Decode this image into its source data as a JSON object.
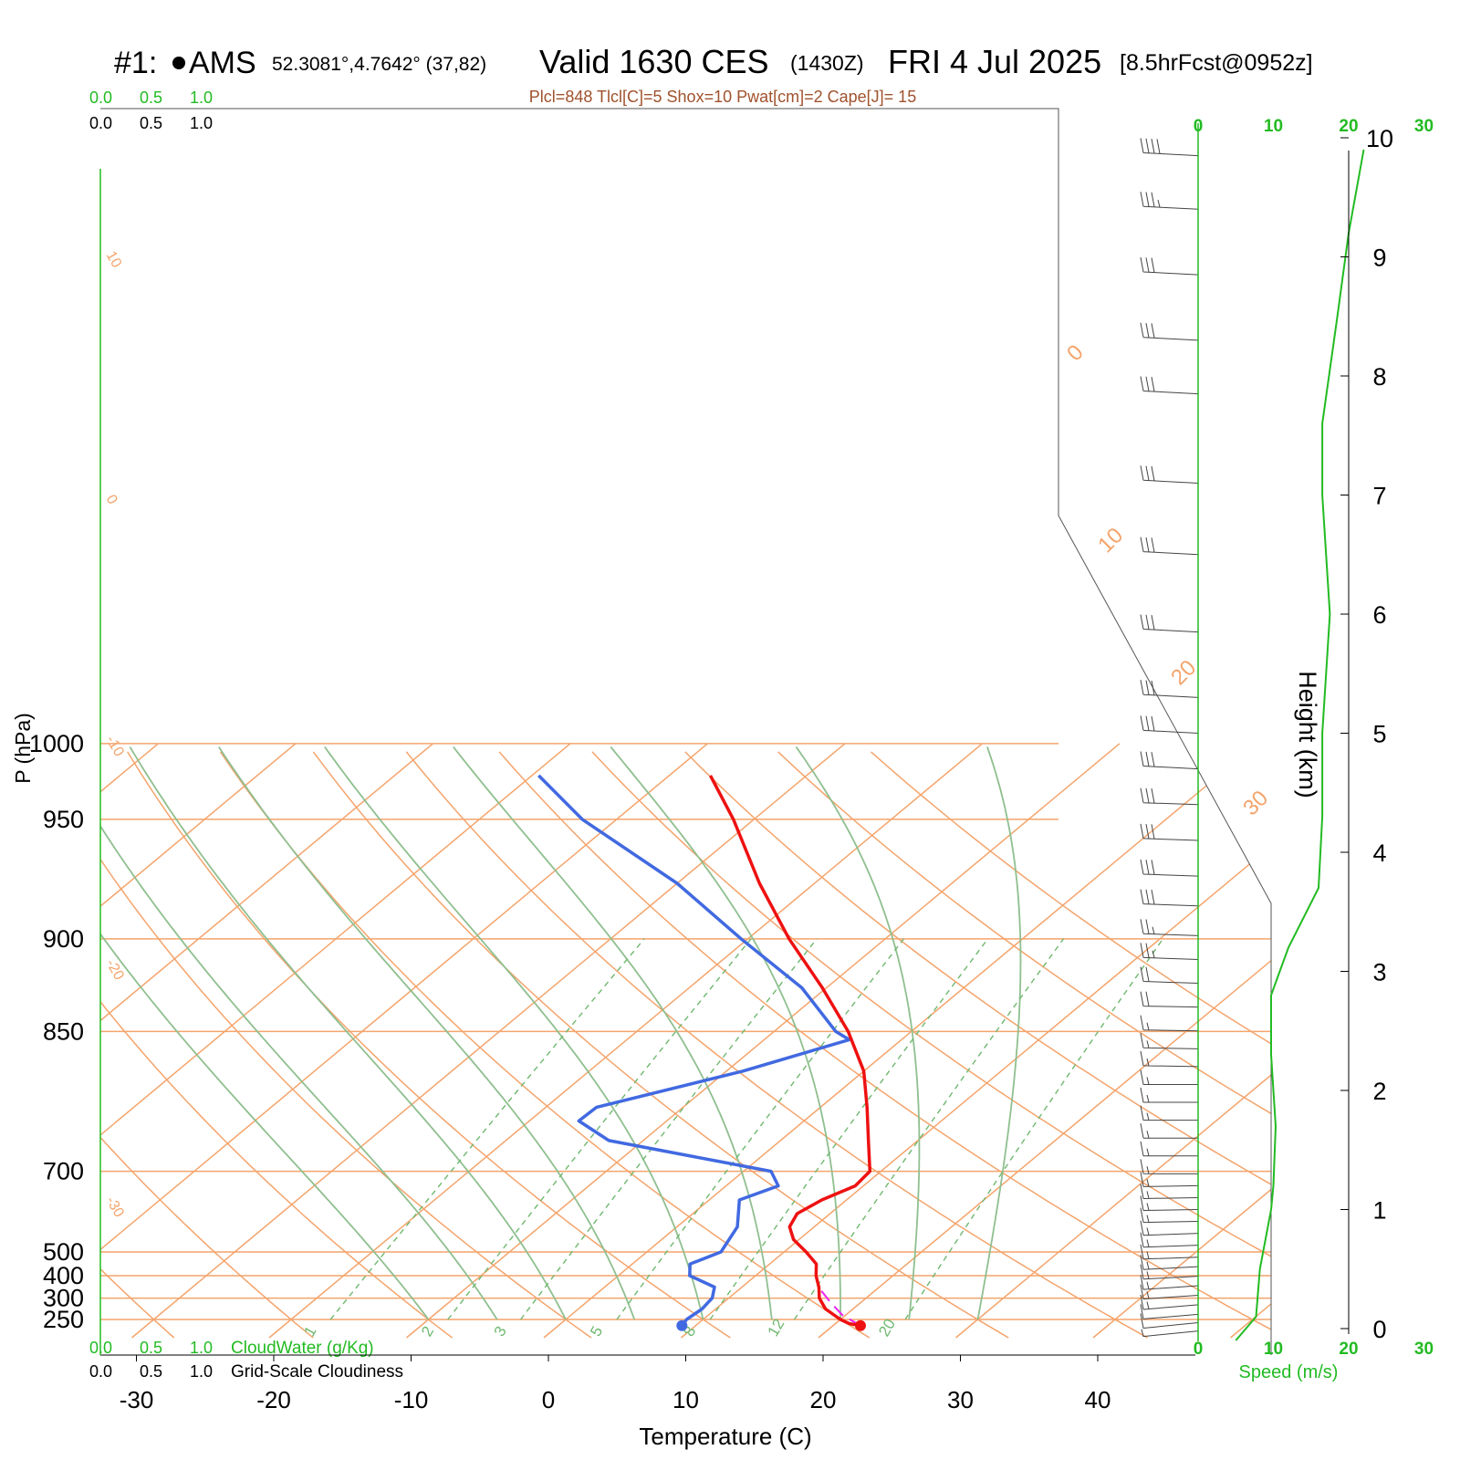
{
  "header": {
    "station_prefix": "#1: ",
    "station": "AMS",
    "coords": "52.3081°,4.7642° (37,82)",
    "valid_label": "Valid 1630 CES",
    "zulu": "(1430Z)",
    "date": "FRI 4 Jul 2025",
    "forecast": "[8.5hrFcst@0952z]",
    "params": "Plcl=848 Tlcl[C]=5 Shox=10 Pwat[cm]=2 Cape[J]= 15"
  },
  "axes": {
    "xlabel": "Temperature (C)",
    "ylabel": "P (hPa)",
    "height_label": "Height (km)",
    "speed_label": "Speed (m/s)",
    "cloudwater_label": "CloudWater (g/Kg)",
    "cloudiness_label": "Grid-Scale Cloudiness",
    "cloud_scale_ticks": [
      "0.0",
      "0.5",
      "1.0"
    ],
    "pressure_ticks": [
      "250",
      "300",
      "400",
      "500",
      "700",
      "850",
      "900",
      "950",
      "1000"
    ],
    "temp_ticks": [
      "-30",
      "-20",
      "-10",
      "0",
      "10",
      "20",
      "30",
      "40"
    ],
    "height_ticks": [
      "0",
      "1",
      "2",
      "3",
      "4",
      "5",
      "6",
      "7",
      "8",
      "9",
      "10"
    ],
    "speed_ticks": [
      "0",
      "10",
      "20",
      "30"
    ]
  },
  "colors": {
    "isobar": "#f4a46c",
    "isotherm": "#f4a46c",
    "dry_adiabat": "#f4a46c",
    "moist_adiabat": "#8fbf8f",
    "mixing_ratio": "#6fb86f",
    "temperature": "#ee1111",
    "dewpoint": "#4169e1",
    "parcel": "#ee22ee",
    "wind_speed": "#22bb22",
    "param_text": "#a0522d"
  },
  "chart_data": {
    "type": "skew-t",
    "pressure_levels": [
      1000,
      950,
      900,
      850,
      700,
      500,
      400,
      300,
      250
    ],
    "temperature_profile": {
      "p": [
        1015,
        1010,
        1000,
        975,
        950,
        925,
        900,
        875,
        850,
        825,
        800,
        775,
        750,
        725,
        700,
        650,
        600,
        550,
        500,
        450,
        400,
        350,
        300,
        270
      ],
      "t": [
        22,
        21,
        20,
        18,
        16.6,
        15.6,
        14.4,
        13.4,
        11.6,
        9.6,
        8.2,
        7.6,
        8.2,
        9.4,
        9.2,
        6.4,
        3.4,
        0,
        -4.6,
        -10.3,
        -17,
        -24,
        -31.5,
        -37
      ]
    },
    "dewpoint_profile": {
      "p": [
        1015,
        1000,
        975,
        950,
        925,
        900,
        875,
        850,
        800,
        750,
        725,
        700,
        650,
        620,
        600,
        550,
        510,
        500,
        450,
        400,
        350,
        300,
        270
      ],
      "td": [
        9,
        8.8,
        9,
        8.8,
        8,
        5.2,
        4.2,
        5.4,
        4.4,
        2.2,
        3.8,
        2,
        -12.5,
        -16.4,
        -16.3,
        -8.8,
        -3.8,
        -5.5,
        -11.8,
        -20.5,
        -30,
        -42.5,
        -49.5
      ]
    },
    "parcel_profile": {
      "p": [
        1015,
        990,
        960,
        930,
        915
      ],
      "t": [
        22,
        19.8,
        17.8,
        15.9,
        15.1
      ]
    },
    "dry_adiabats_C": [
      -30,
      -20,
      -10,
      0,
      10,
      20,
      30,
      40,
      50,
      60,
      70,
      80,
      90
    ],
    "moist_adiabats_C": [
      -10,
      -5,
      0,
      5,
      10,
      15,
      20,
      25,
      30
    ],
    "mixing_ratio_lines": [
      1,
      2,
      3,
      5,
      8,
      12,
      20
    ],
    "wind_speed_profile": {
      "height_km": [
        -0.1,
        0.1,
        0.5,
        1,
        1.2,
        1.7,
        2.3,
        2.8,
        3.2,
        3.7,
        4.3,
        5,
        6,
        7,
        7.6,
        8.5,
        9.2,
        9.9
      ],
      "speed": [
        5,
        7.7,
        8.2,
        9.7,
        10,
        10.3,
        9.7,
        9.7,
        12,
        16,
        16.5,
        16.5,
        17.5,
        16.5,
        16.5,
        18.5,
        20,
        22
      ]
    },
    "wind_barbs": {
      "height_km": [
        -0.02,
        0.05,
        0.12,
        0.2,
        0.28,
        0.36,
        0.44,
        0.52,
        0.6,
        0.7,
        0.8,
        0.9,
        1.0,
        1.1,
        1.2,
        1.3,
        1.45,
        1.6,
        1.75,
        1.9,
        2.05,
        2.2,
        2.35,
        2.5,
        2.7,
        2.9,
        3.1,
        3.3,
        3.55,
        3.8,
        4.1,
        4.4,
        4.7,
        5.0,
        5.3,
        5.85,
        6.5,
        7.1,
        7.85,
        8.3,
        8.85,
        9.4,
        9.85
      ],
      "speed_ms": [
        5,
        6,
        7,
        8,
        8,
        9,
        9,
        9,
        10,
        10,
        10,
        10,
        10,
        10,
        10,
        10,
        10,
        10,
        10,
        10,
        10,
        10,
        10,
        10,
        12,
        12,
        14,
        15,
        16,
        16,
        16,
        16,
        16,
        16,
        16,
        17,
        17,
        16,
        16,
        18,
        18,
        20,
        22
      ],
      "dir_deg": [
        240,
        240,
        245,
        245,
        250,
        250,
        255,
        255,
        260,
        260,
        260,
        265,
        265,
        265,
        265,
        270,
        270,
        270,
        270,
        270,
        270,
        275,
        275,
        275,
        275,
        280,
        280,
        280,
        280,
        280,
        280,
        280,
        285,
        285,
        285,
        285,
        285,
        285,
        285,
        285,
        285,
        285,
        285
      ]
    },
    "xlim": [
      -33,
      47
    ],
    "ylim": [
      1040,
      250
    ],
    "height_range_km": [
      -0.05,
      10.35
    ],
    "speed_range_ms": [
      0,
      30
    ]
  }
}
